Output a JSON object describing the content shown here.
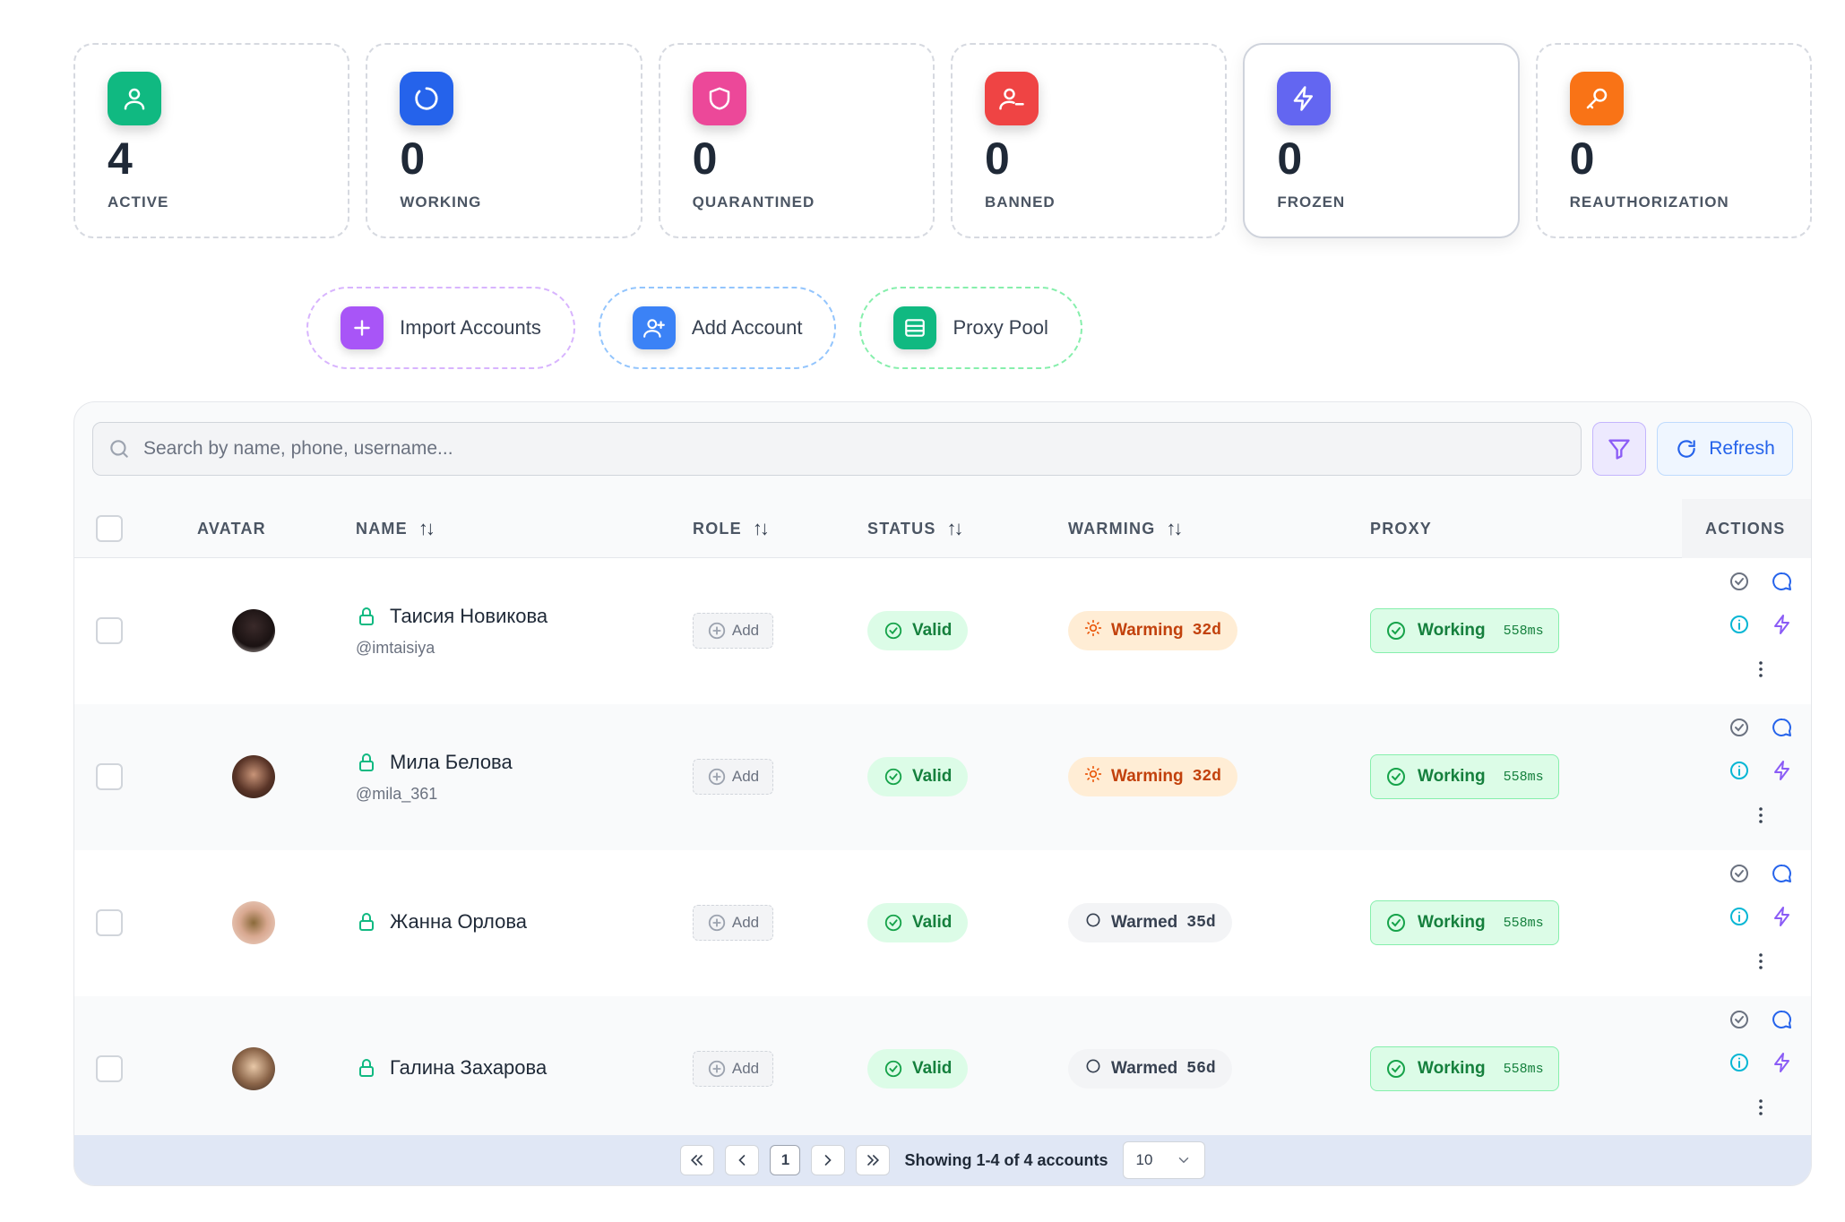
{
  "stats": [
    {
      "value": "4",
      "label": "ACTIVE",
      "color": "#10b981",
      "icon": "user-icon"
    },
    {
      "value": "0",
      "label": "WORKING",
      "color": "#2563eb",
      "icon": "loader-icon"
    },
    {
      "value": "0",
      "label": "QUARANTINED",
      "color": "#ec4899",
      "icon": "shield-icon"
    },
    {
      "value": "0",
      "label": "BANNED",
      "color": "#ef4444",
      "icon": "user-x-icon"
    },
    {
      "value": "0",
      "label": "FROZEN",
      "color": "#6366f1",
      "icon": "zap-icon"
    },
    {
      "value": "0",
      "label": "REAUTHORIZATION",
      "color": "#f97316",
      "icon": "key-icon"
    }
  ],
  "actions": {
    "import_label": "Import Accounts",
    "add_label": "Add Account",
    "proxy_label": "Proxy Pool"
  },
  "toolbar": {
    "search_placeholder": "Search by name, phone, username...",
    "refresh_label": "Refresh"
  },
  "columns": {
    "avatar": "AVATAR",
    "name": "NAME",
    "role": "ROLE",
    "status": "STATUS",
    "warming": "WARMING",
    "proxy": "PROXY",
    "actions": "ACTIONS"
  },
  "sort_glyph": "↑↓",
  "rows": [
    {
      "name": "Таисия Новикова",
      "username": "@imtaisiya",
      "role": "Add",
      "status": "Valid",
      "warming_label": "Warming",
      "warming_days": "32d",
      "warming_state": "warming",
      "proxy_label": "Working",
      "proxy_ms": "558ms"
    },
    {
      "name": "Мила Белова",
      "username": "@mila_361",
      "role": "Add",
      "status": "Valid",
      "warming_label": "Warming",
      "warming_days": "32d",
      "warming_state": "warming",
      "proxy_label": "Working",
      "proxy_ms": "558ms"
    },
    {
      "name": "Жанна Орлова",
      "username": "",
      "role": "Add",
      "status": "Valid",
      "warming_label": "Warmed",
      "warming_days": "35d",
      "warming_state": "warmed",
      "proxy_label": "Working",
      "proxy_ms": "558ms"
    },
    {
      "name": "Галина Захарова",
      "username": "",
      "role": "Add",
      "status": "Valid",
      "warming_label": "Warmed",
      "warming_days": "56d",
      "warming_state": "warmed",
      "proxy_label": "Working",
      "proxy_ms": "558ms"
    }
  ],
  "pagination": {
    "current_page": "1",
    "info": "Showing 1-4 of 4 accounts",
    "page_size": "10"
  }
}
